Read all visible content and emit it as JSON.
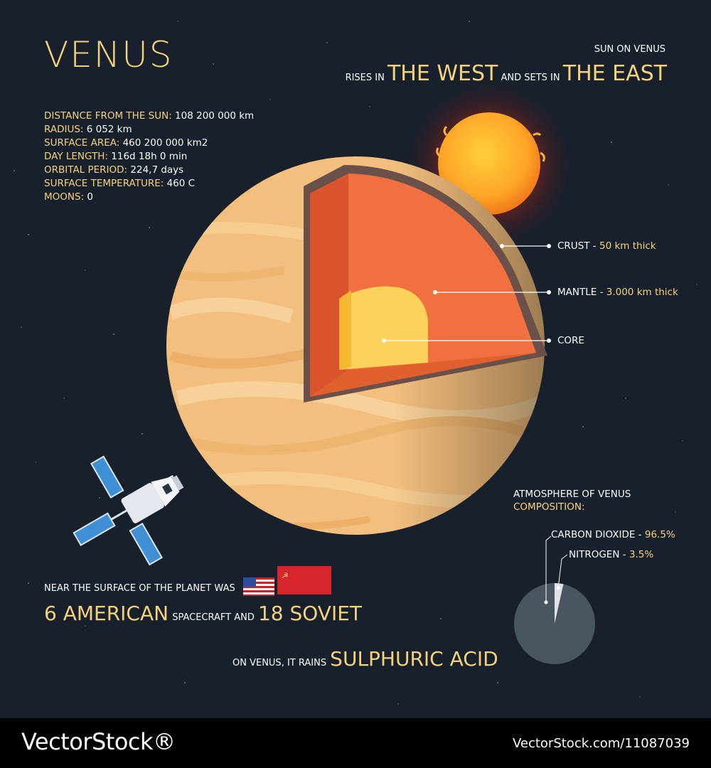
{
  "title": "VENUS",
  "facts": [
    {
      "key": "DISTANCE FROM THE SUN:",
      "value": " 108 200 000 km"
    },
    {
      "key": "RADIUS:",
      "value": " 6 052 km"
    },
    {
      "key": "SURFACE AREA:",
      "value": " 460 200 000  km2"
    },
    {
      "key": "DAY LENGTH:",
      "value": "  116d 18h 0 min"
    },
    {
      "key": "ORBITAL PERIOD:",
      "value": " 224,7 days"
    },
    {
      "key": "SURFACE TEMPERATURE:",
      "value": " 460 C"
    },
    {
      "key": "MOONS:",
      "value": " 0"
    }
  ],
  "sun": {
    "title": "SUN ON VENUS",
    "rises_in": "RISES IN",
    "west": "THE WEST",
    "and_sets_in": "AND SETS IN",
    "east": "THE EAST"
  },
  "layers": {
    "crust": {
      "name": "CRUST",
      "sep": " - ",
      "detail": "50 km thick"
    },
    "mantle": {
      "name": "MANTLE",
      "sep": " - ",
      "detail": "3.000 km thick"
    },
    "core": {
      "name": "CORE"
    }
  },
  "atmosphere": {
    "title": "ATMOSPHERE OF VENUS",
    "subtitle": "COMPOSITION:",
    "components": [
      {
        "name": "CARBON DIOXIDE",
        "sep": " - ",
        "percent": "96.5%",
        "value": 96.5
      },
      {
        "name": "NITROGEN",
        "sep": " - ",
        "percent": "3.5%",
        "value": 3.5
      }
    ]
  },
  "spacecraft": {
    "line1": "NEAR THE SURFACE OF THE PLANET WAS",
    "american": "6 AMERICAN",
    "middle": "SPACECRAFT AND",
    "soviet": "18 SOVIET"
  },
  "rain": {
    "prefix": "ON VENUS, IT RAINS",
    "acid": "SULPHURIC ACID"
  },
  "footer": {
    "logo": "VectorStock®",
    "url": "VectorStock.com/11087039"
  },
  "colors": {
    "background": "#18202b",
    "accent": "#f3d27c",
    "planet": "#f2bf7e",
    "mantle": "#f07040",
    "core": "#fdd25a",
    "crust": "#6a5048"
  }
}
